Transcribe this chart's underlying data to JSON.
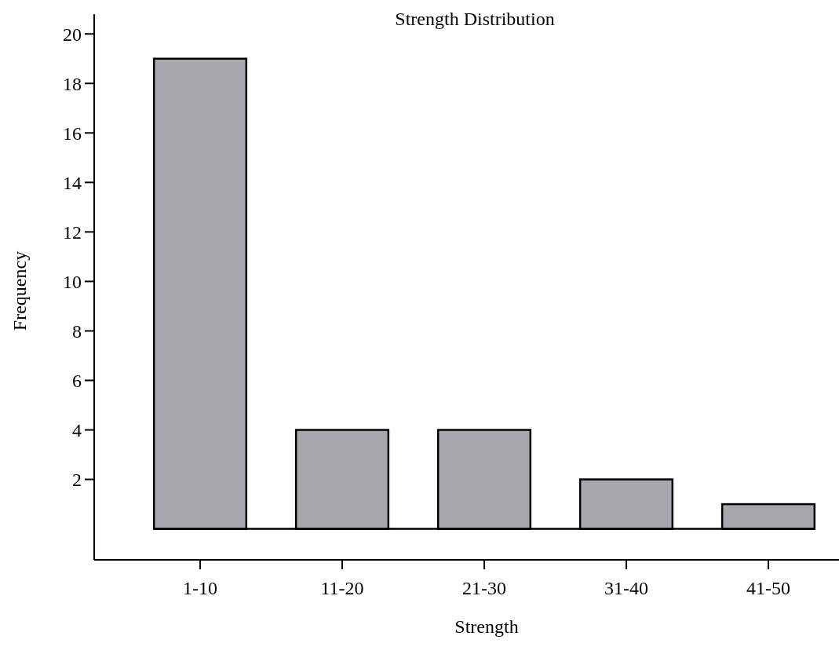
{
  "chart_data": {
    "type": "bar",
    "title": "Strength Distribution",
    "xlabel": "Strength",
    "ylabel": "Frequency",
    "categories": [
      "1-10",
      "11-20",
      "21-30",
      "31-40",
      "41-50"
    ],
    "values": [
      19,
      4,
      4,
      2,
      1
    ],
    "color": "#a7a8ab",
    "ylim": [
      -1.25,
      20.8
    ],
    "yticks": [
      2,
      4,
      6,
      8,
      10,
      12,
      14,
      16,
      18,
      20
    ],
    "ref_lines": [
      {
        "axis": "y",
        "value": 0,
        "color": "#000000"
      }
    ],
    "grid": false
  }
}
